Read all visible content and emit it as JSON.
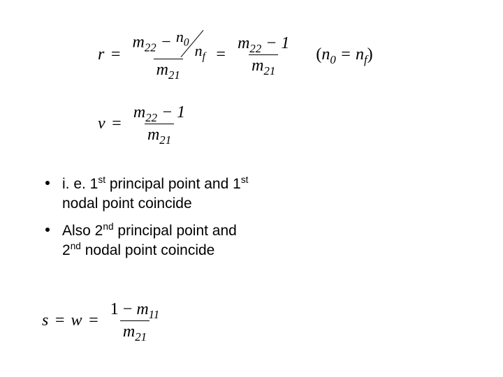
{
  "equations": {
    "eq1": {
      "lhs": "r",
      "frac1_num_m": "m",
      "frac1_num_msub": "22",
      "frac1_num_minus": " − ",
      "n0": "n",
      "n0_sub": "0",
      "nf": "n",
      "nf_sub": "f",
      "frac1_den_m": "m",
      "frac1_den_msub": "21",
      "frac2_num_m": "m",
      "frac2_num_msub": "22",
      "frac2_num_rest": " − 1",
      "frac2_den_m": "m",
      "frac2_den_msub": "21",
      "paren_open": "(",
      "paren_n0": "n",
      "paren_n0_sub": "0",
      "paren_eq": " = ",
      "paren_nf": "n",
      "paren_nf_sub": "f",
      "paren_close": ")"
    },
    "eq2": {
      "lhs": "v",
      "num_m": "m",
      "num_msub": "22",
      "num_rest": " − 1",
      "den_m": "m",
      "den_msub": "21"
    },
    "eq3": {
      "lhs1": "s",
      "lhs2": "w",
      "num_text": "1 − ",
      "num_m": "m",
      "num_msub": "11",
      "den_m": "m",
      "den_msub": "21"
    }
  },
  "bullets": {
    "b1_pre": "i. e. 1",
    "b1_sup1": "st",
    "b1_mid": " principal point and 1",
    "b1_sup2": "st",
    "b1_post": " nodal point coincide",
    "b2_pre": "Also 2",
    "b2_sup1": "nd",
    "b2_mid": " principal point and 2",
    "b2_sup2": "nd",
    "b2_post": "  nodal  point coincide"
  }
}
